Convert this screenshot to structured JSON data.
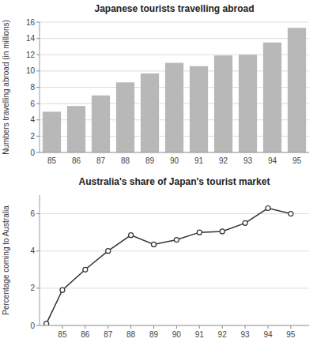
{
  "chart_data": [
    {
      "type": "bar",
      "title": "Japanese tourists travelling abroad",
      "y_label": "Numbers travelling abroad (in millions)",
      "categories": [
        "85",
        "86",
        "87",
        "88",
        "89",
        "90",
        "91",
        "92",
        "93",
        "94",
        "95"
      ],
      "values": [
        5.0,
        5.7,
        7.0,
        8.6,
        9.7,
        11.0,
        10.6,
        11.9,
        12.0,
        13.5,
        15.3
      ],
      "color": "#b8b8b8",
      "ylim": [
        0,
        16
      ],
      "yticks": [
        0,
        2,
        4,
        6,
        8,
        10,
        12,
        14,
        16
      ],
      "grid": true
    },
    {
      "type": "line",
      "title": "Australia's share of Japan's tourist market",
      "y_label": "Percentage coming to Australia",
      "x": [
        84.3,
        85,
        86,
        87,
        88,
        89,
        90,
        91,
        92,
        93,
        94,
        95
      ],
      "values": [
        0.1,
        1.9,
        3.0,
        4.0,
        4.85,
        4.35,
        4.6,
        5.0,
        5.05,
        5.5,
        6.3,
        6.0
      ],
      "color": "#333333",
      "marker": "circle",
      "xlim": [
        84.0,
        95.8
      ],
      "xticks": [
        85,
        86,
        87,
        88,
        89,
        90,
        91,
        92,
        93,
        94,
        95
      ],
      "ylim": [
        0,
        7
      ],
      "yticks": [
        0,
        2,
        4,
        6
      ],
      "grid": true
    }
  ]
}
